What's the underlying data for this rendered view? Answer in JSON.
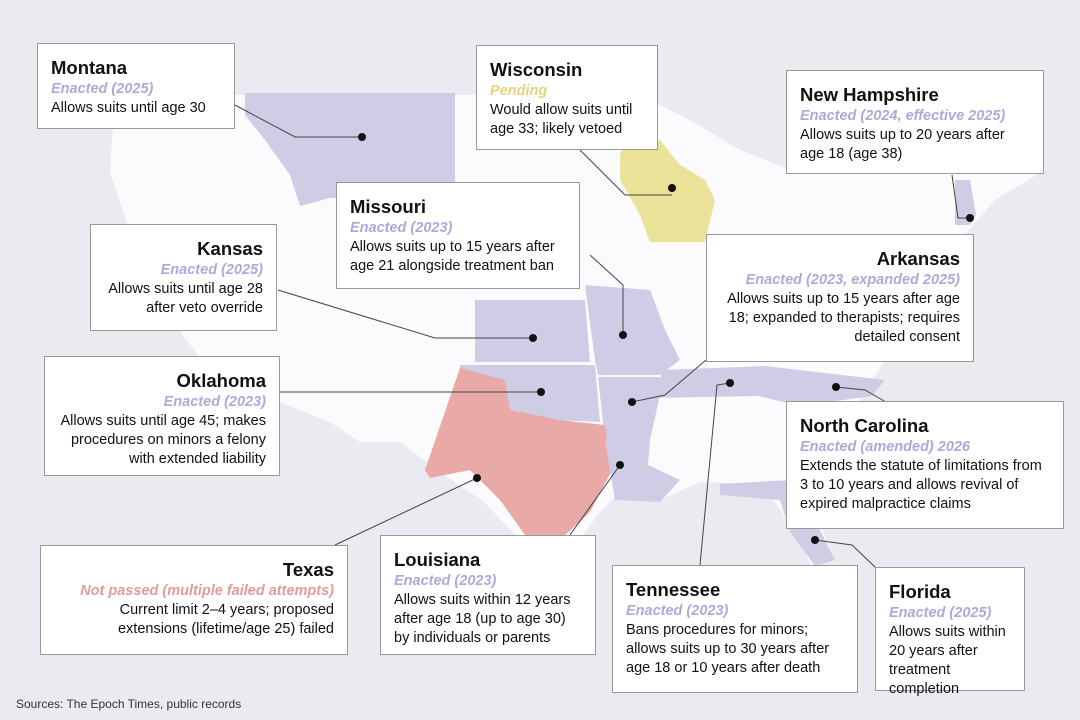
{
  "colors": {
    "background": "#ebeaf0",
    "land": "#fbfbfd",
    "enacted": "#cfcce6",
    "pending": "#ebe29a",
    "not_passed": "#e8a9a7"
  },
  "legend_semantics": {
    "enacted": "Enacted",
    "pending": "Pending",
    "not_passed": "Not passed"
  },
  "states": [
    {
      "id": "montana",
      "name": "Montana",
      "status": "Enacted (2025)",
      "category": "enacted",
      "desc": "Allows suits until age 30"
    },
    {
      "id": "wisconsin",
      "name": "Wisconsin",
      "status": "Pending",
      "category": "pending",
      "desc": "Would allow suits until age 33; likely vetoed"
    },
    {
      "id": "new-hampshire",
      "name": "New Hampshire",
      "status": "Enacted (2024, effective 2025)",
      "category": "enacted",
      "desc": "Allows suits up to 20 years after age 18 (age 38)"
    },
    {
      "id": "missouri",
      "name": "Missouri",
      "status": "Enacted (2023)",
      "category": "enacted",
      "desc": "Allows suits up to 15 years after age 21 alongside treatment ban"
    },
    {
      "id": "kansas",
      "name": "Kansas",
      "status": "Enacted (2025)",
      "category": "enacted",
      "desc": "Allows suits until age 28 after veto override"
    },
    {
      "id": "arkansas",
      "name": "Arkansas",
      "status": "Enacted (2023, expanded 2025)",
      "category": "enacted",
      "desc": "Allows suits up to 15 years after age 18; expanded to therapists; requires detailed consent"
    },
    {
      "id": "oklahoma",
      "name": "Oklahoma",
      "status": "Enacted (2023)",
      "category": "enacted",
      "desc": "Allows suits until age 45; makes procedures on minors a felony with extended liability"
    },
    {
      "id": "north-carolina",
      "name": "North Carolina",
      "status": "Enacted (amended) 2026",
      "category": "enacted",
      "desc": "Extends the statute of limitations from 3 to 10 years and allows revival of expired malpractice claims"
    },
    {
      "id": "texas",
      "name": "Texas",
      "status": "Not passed (multiple failed attempts)",
      "category": "not_passed",
      "desc": "Current limit 2–4 years; proposed extensions (lifetime/age 25) failed"
    },
    {
      "id": "louisiana",
      "name": "Louisiana",
      "status": "Enacted (2023)",
      "category": "enacted",
      "desc": "Allows suits within 12 years after age 18 (up to age 30) by individuals or parents"
    },
    {
      "id": "tennessee",
      "name": "Tennessee",
      "status": "Enacted (2023)",
      "category": "enacted",
      "desc": "Bans procedures for minors; allows suits up to 30 years after age 18 or 10 years after death"
    },
    {
      "id": "florida",
      "name": "Florida",
      "status": "Enacted (2025)",
      "category": "enacted",
      "desc": "Allows suits within 20 years after treatment completion"
    }
  ],
  "sources": "Sources: The Epoch Times, public records"
}
